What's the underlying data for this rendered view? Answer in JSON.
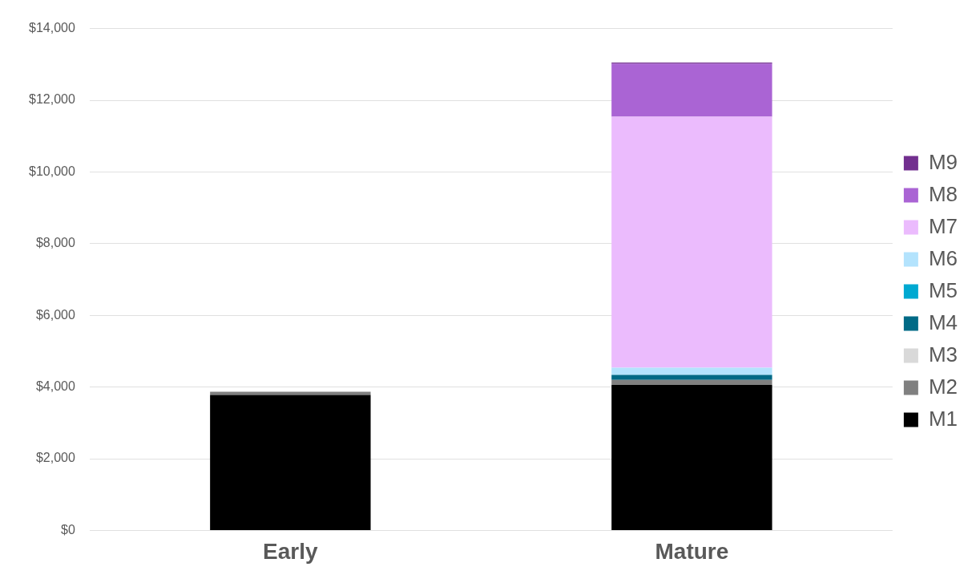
{
  "chart_data": {
    "type": "bar",
    "stacked": true,
    "categories": [
      "Early",
      "Mature"
    ],
    "series": [
      {
        "name": "M1",
        "color": "#000000",
        "values": [
          3780,
          4060
        ]
      },
      {
        "name": "M2",
        "color": "#808080",
        "values": [
          90,
          140
        ]
      },
      {
        "name": "M3",
        "color": "#d9d9d9",
        "values": [
          0,
          null
        ]
      },
      {
        "name": "M4",
        "color": "#006a86",
        "values": [
          0,
          140
        ]
      },
      {
        "name": "M5",
        "color": "#00a9d1",
        "values": [
          0,
          null
        ]
      },
      {
        "name": "M6",
        "color": "#b3e3fd",
        "values": [
          0,
          200
        ]
      },
      {
        "name": "M7",
        "color": "#ebbbfd",
        "values": [
          0,
          7000
        ]
      },
      {
        "name": "M8",
        "color": "#aa64d4",
        "values": [
          0,
          1480
        ]
      },
      {
        "name": "M9",
        "color": "#722f8f",
        "values": [
          0,
          30
        ]
      }
    ],
    "ylim": [
      0,
      14000
    ],
    "yticks": [
      {
        "value": 0,
        "label": "$0"
      },
      {
        "value": 2000,
        "label": "$2,000"
      },
      {
        "value": 4000,
        "label": "$4,000"
      },
      {
        "value": 6000,
        "label": "$6,000"
      },
      {
        "value": 8000,
        "label": "$8,000"
      },
      {
        "value": 10000,
        "label": "$10,000"
      },
      {
        "value": 12000,
        "label": "$12,000"
      },
      {
        "value": 14000,
        "label": "$14,000"
      }
    ],
    "grid": "y",
    "legend": "right"
  }
}
